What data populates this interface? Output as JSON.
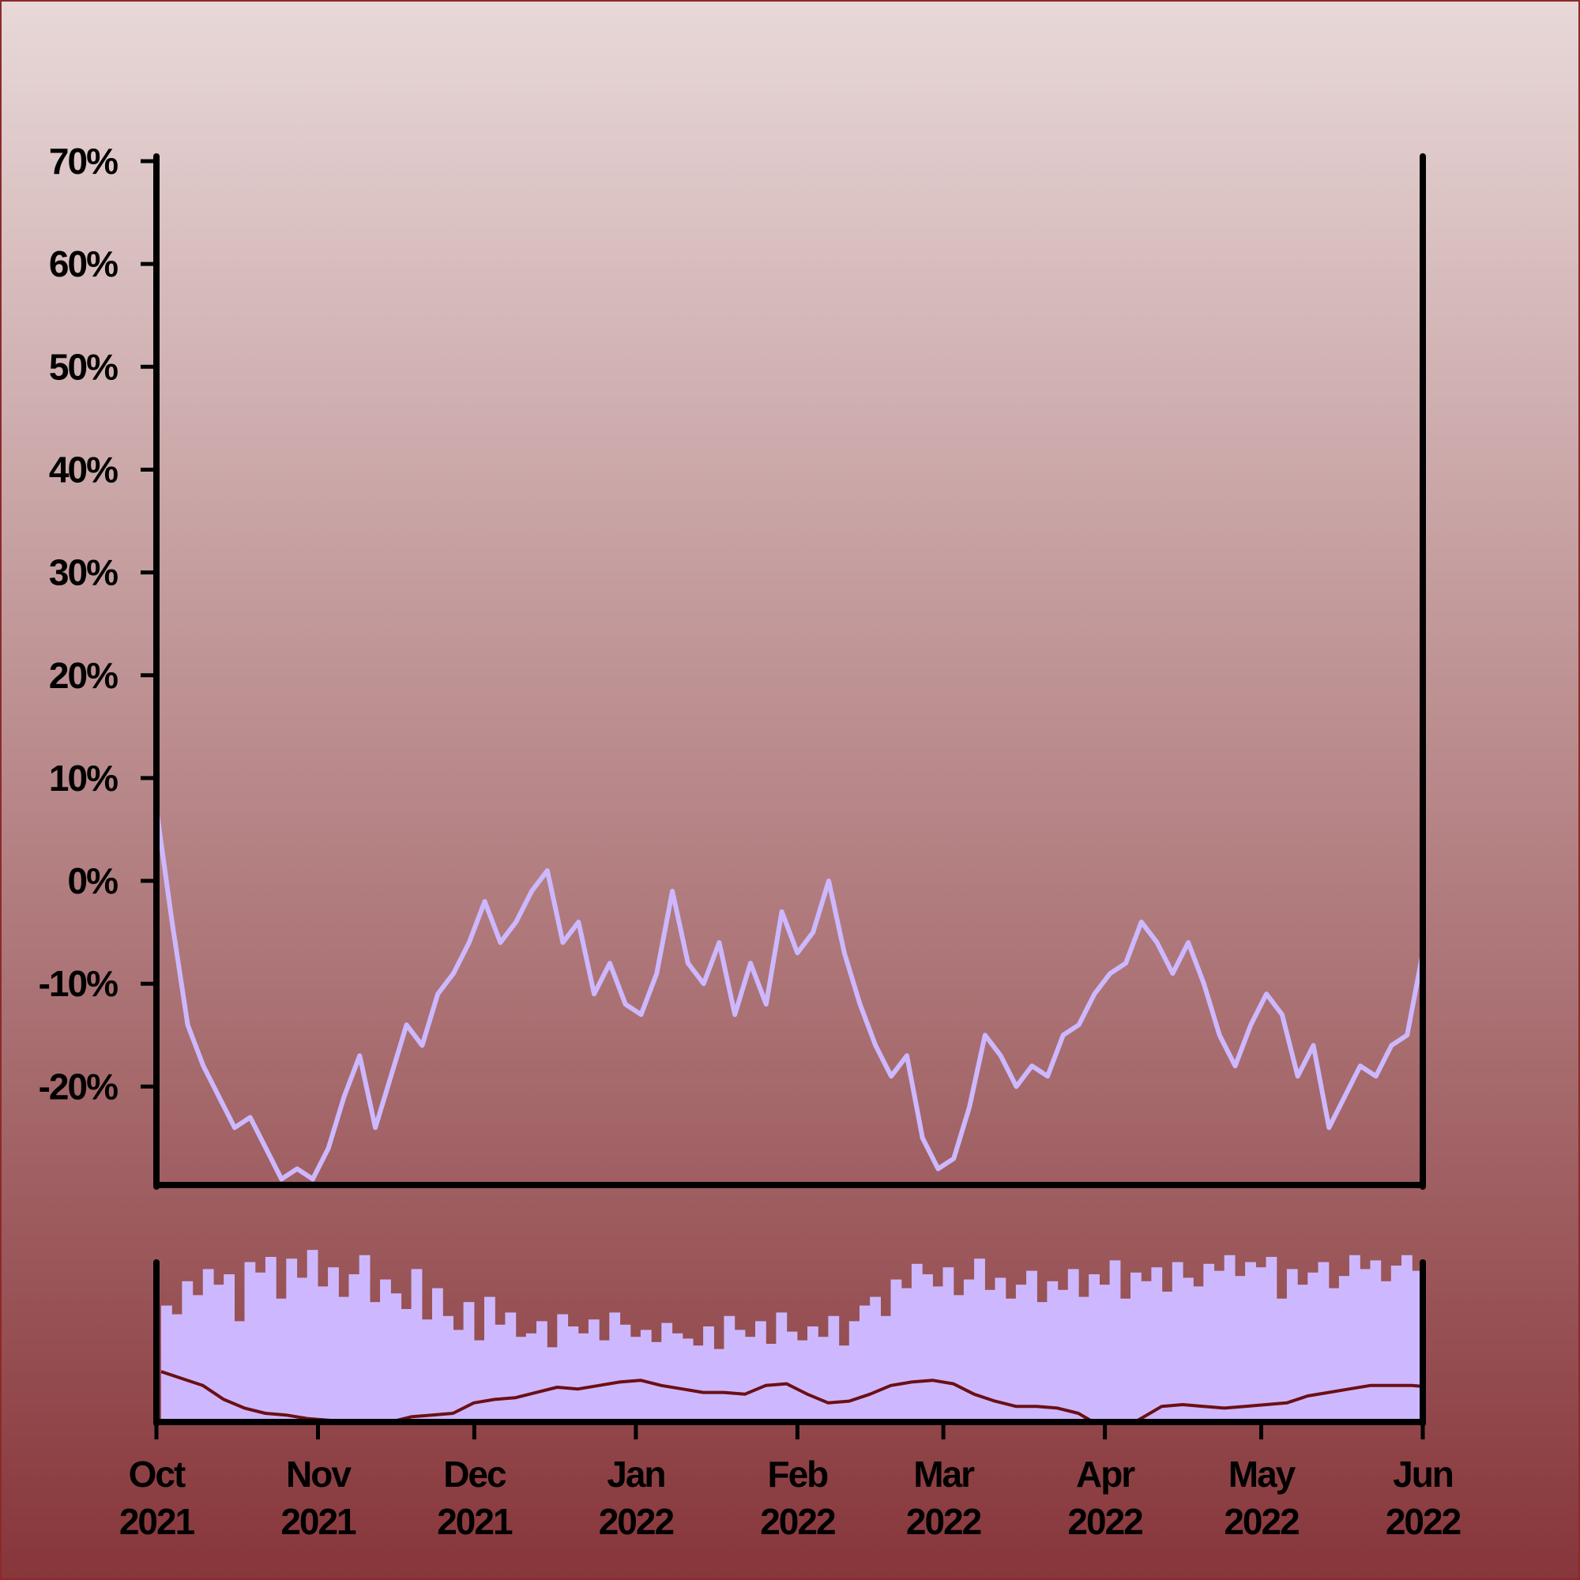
{
  "colors": {
    "background_top": "#e8d8d8",
    "background_bottom": "#87363a",
    "border": "#8b2a2a",
    "axis": "#000000",
    "main_line": "#cdb8ff",
    "volume_bars": "#cdb8ff",
    "volume_ma_line": "#6b0f14"
  },
  "chart_data": [
    {
      "type": "line",
      "title": "",
      "xlabel": "",
      "ylabel": "",
      "x_range": [
        "2021-10-01",
        "2022-06-01"
      ],
      "ylim": [
        -29.5,
        70
      ],
      "y_format": "percent",
      "grid": false,
      "legend": "none",
      "yticks": [
        {
          "value": 70,
          "label": "70%"
        },
        {
          "value": 60,
          "label": "60%"
        },
        {
          "value": 50,
          "label": "50%"
        },
        {
          "value": 40,
          "label": "40%"
        },
        {
          "value": 30,
          "label": "30%"
        },
        {
          "value": 20,
          "label": "20%"
        },
        {
          "value": 10,
          "label": "10%"
        },
        {
          "value": 0,
          "label": "0%"
        },
        {
          "value": -10,
          "label": "-10%"
        },
        {
          "value": -20,
          "label": "-20%"
        }
      ],
      "series": [
        {
          "x": [
            "2021-10-01",
            "2021-10-04",
            "2021-10-07",
            "2021-10-10",
            "2021-10-13",
            "2021-10-16",
            "2021-10-19",
            "2021-10-22",
            "2021-10-25",
            "2021-10-28",
            "2021-10-31",
            "2021-11-03",
            "2021-11-06",
            "2021-11-09",
            "2021-11-12",
            "2021-11-15",
            "2021-11-18",
            "2021-11-21",
            "2021-11-24",
            "2021-11-27",
            "2021-11-30",
            "2021-12-03",
            "2021-12-06",
            "2021-12-09",
            "2021-12-12",
            "2021-12-15",
            "2021-12-18",
            "2021-12-21",
            "2021-12-24",
            "2021-12-27",
            "2021-12-30",
            "2022-01-02",
            "2022-01-05",
            "2022-01-08",
            "2022-01-11",
            "2022-01-14",
            "2022-01-17",
            "2022-01-20",
            "2022-01-23",
            "2022-01-26",
            "2022-01-29",
            "2022-02-01",
            "2022-02-04",
            "2022-02-07",
            "2022-02-10",
            "2022-02-13",
            "2022-02-16",
            "2022-02-19",
            "2022-02-22",
            "2022-02-25",
            "2022-02-28",
            "2022-03-03",
            "2022-03-06",
            "2022-03-09",
            "2022-03-12",
            "2022-03-15",
            "2022-03-18",
            "2022-03-21",
            "2022-03-24",
            "2022-03-27",
            "2022-03-30",
            "2022-04-02",
            "2022-04-05",
            "2022-04-08",
            "2022-04-11",
            "2022-04-14",
            "2022-04-17",
            "2022-04-20",
            "2022-04-23",
            "2022-04-26",
            "2022-04-29",
            "2022-05-02",
            "2022-05-05",
            "2022-05-08",
            "2022-05-11",
            "2022-05-14",
            "2022-05-17",
            "2022-05-20",
            "2022-05-23",
            "2022-05-26",
            "2022-05-29",
            "2022-06-01"
          ],
          "values": [
            7,
            -4,
            -14,
            -18,
            -21,
            -24,
            -23,
            -26,
            -29,
            -28,
            -29,
            -26,
            -21,
            -17,
            -24,
            -19,
            -14,
            -16,
            -11,
            -9,
            -6,
            -2,
            -6,
            -4,
            -1,
            1,
            -6,
            -4,
            -11,
            -8,
            -12,
            -13,
            -9,
            -1,
            -8,
            -10,
            -6,
            -13,
            -8,
            -12,
            -3,
            -7,
            -5,
            0,
            -7,
            -12,
            -16,
            -19,
            -17,
            -25,
            -28,
            -27,
            -22,
            -15,
            -17,
            -20,
            -18,
            -19,
            -15,
            -14,
            -11,
            -9,
            -8,
            -4,
            -6,
            -9,
            -6,
            -10,
            -15,
            -18,
            -14,
            -11,
            -13,
            -19,
            -16,
            -24,
            -21,
            -18,
            -19,
            -16,
            -15,
            -7
          ]
        }
      ]
    },
    {
      "type": "bar",
      "title": "",
      "xlabel": "",
      "ylabel": "",
      "x_range": [
        "2021-10-01",
        "2022-06-01"
      ],
      "grid": false,
      "legend": "none",
      "xticks": [
        {
          "date": "2021-10-01",
          "line1": "Oct",
          "line2": "2021"
        },
        {
          "date": "2021-11-01",
          "line1": "Nov",
          "line2": "2021"
        },
        {
          "date": "2021-12-01",
          "line1": "Dec",
          "line2": "2021"
        },
        {
          "date": "2022-01-01",
          "line1": "Jan",
          "line2": "2022"
        },
        {
          "date": "2022-02-01",
          "line1": "Feb",
          "line2": "2022"
        },
        {
          "date": "2022-03-01",
          "line1": "Mar",
          "line2": "2022"
        },
        {
          "date": "2022-04-01",
          "line1": "Apr",
          "line2": "2022"
        },
        {
          "date": "2022-05-01",
          "line1": "May",
          "line2": "2022"
        },
        {
          "date": "2022-06-01",
          "line1": "Jun",
          "line2": "2022"
        }
      ],
      "series": [
        {
          "kind": "volume_bars",
          "start_date": "2021-10-01",
          "step_days": 2,
          "values": [
            0.67,
            0.62,
            0.81,
            0.73,
            0.88,
            0.79,
            0.85,
            0.58,
            0.92,
            0.86,
            0.95,
            0.71,
            0.94,
            0.83,
            0.99,
            0.78,
            0.89,
            0.72,
            0.85,
            0.96,
            0.69,
            0.82,
            0.74,
            0.65,
            0.88,
            0.59,
            0.77,
            0.61,
            0.53,
            0.69,
            0.47,
            0.72,
            0.56,
            0.63,
            0.49,
            0.51,
            0.58,
            0.43,
            0.62,
            0.55,
            0.51,
            0.59,
            0.47,
            0.63,
            0.56,
            0.49,
            0.53,
            0.46,
            0.57,
            0.51,
            0.48,
            0.44,
            0.55,
            0.42,
            0.61,
            0.53,
            0.49,
            0.58,
            0.45,
            0.63,
            0.52,
            0.47,
            0.55,
            0.49,
            0.61,
            0.44,
            0.58,
            0.67,
            0.72,
            0.61,
            0.82,
            0.77,
            0.91,
            0.85,
            0.78,
            0.89,
            0.73,
            0.82,
            0.94,
            0.76,
            0.83,
            0.71,
            0.79,
            0.87,
            0.69,
            0.81,
            0.76,
            0.88,
            0.72,
            0.85,
            0.79,
            0.93,
            0.71,
            0.86,
            0.81,
            0.89,
            0.75,
            0.92,
            0.83,
            0.78,
            0.91,
            0.87,
            0.96,
            0.84,
            0.92,
            0.89,
            0.95,
            0.71,
            0.88,
            0.79,
            0.86,
            0.92,
            0.77,
            0.84,
            0.96,
            0.88,
            0.93,
            0.81,
            0.9,
            0.96,
            0.87,
            0.73
          ]
        },
        {
          "kind": "moving_average",
          "start_date": "2021-10-01",
          "step_days": 4,
          "values": [
            0.29,
            0.25,
            0.21,
            0.13,
            0.08,
            0.05,
            0.04,
            0.02,
            0.01,
            0.0,
            -0.01,
            0.0,
            0.03,
            0.04,
            0.05,
            0.11,
            0.13,
            0.14,
            0.17,
            0.2,
            0.19,
            0.21,
            0.23,
            0.24,
            0.21,
            0.19,
            0.17,
            0.17,
            0.16,
            0.21,
            0.22,
            0.16,
            0.11,
            0.12,
            0.16,
            0.21,
            0.23,
            0.24,
            0.22,
            0.16,
            0.12,
            0.09,
            0.09,
            0.08,
            0.05,
            -0.02,
            -0.05,
            0.02,
            0.09,
            0.1,
            0.09,
            0.08,
            0.09,
            0.1,
            0.11,
            0.15,
            0.17,
            0.19,
            0.21,
            0.21,
            0.21,
            0.2,
            0.19,
            0.15,
            0.11,
            0.12,
            0.16,
            0.15,
            0.09,
            0.07,
            0.07,
            0.06,
            0.06,
            0.06,
            0.09,
            0.1
          ]
        }
      ]
    }
  ]
}
